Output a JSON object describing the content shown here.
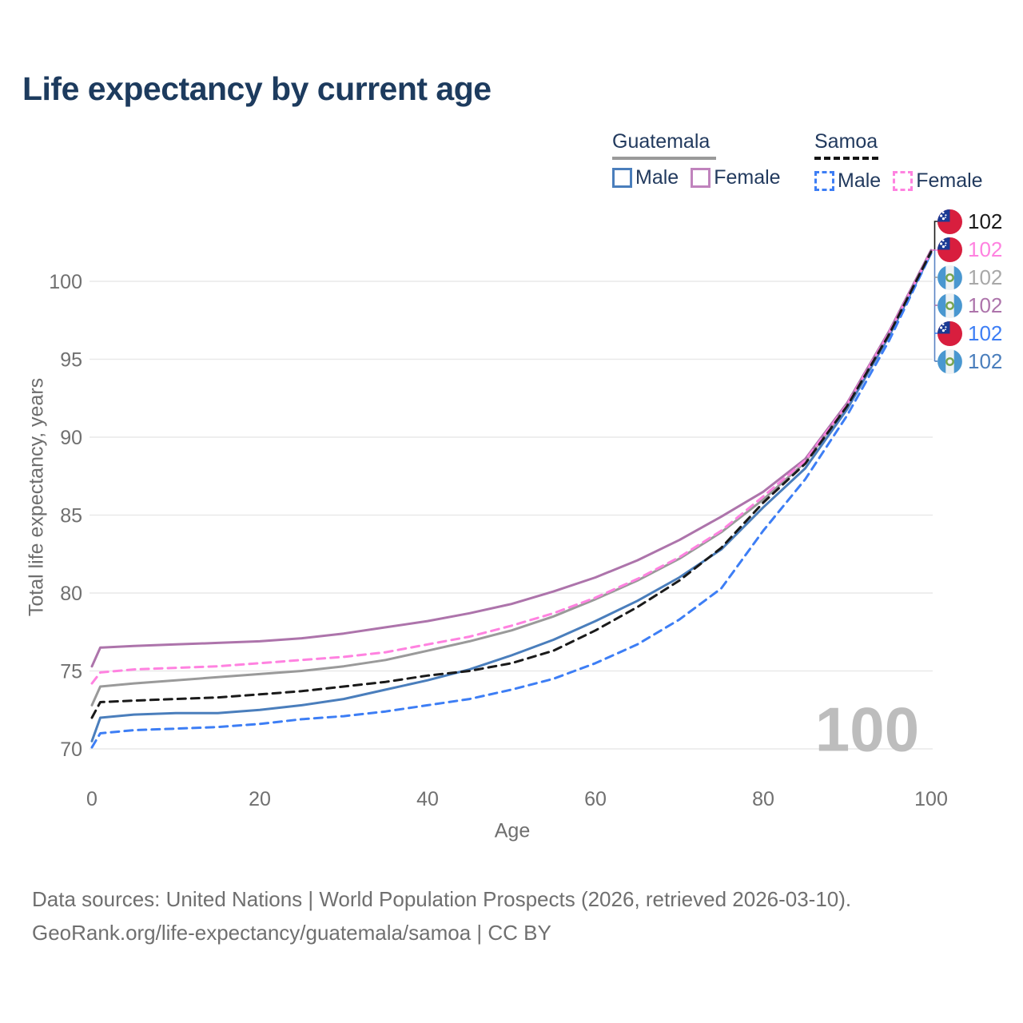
{
  "title": "Life expectancy by current age",
  "watermark": "100",
  "legend": {
    "groups": [
      {
        "title": "Guatemala",
        "style": "solid",
        "items": [
          {
            "label": "Male",
            "color": "#4a7ebc"
          },
          {
            "label": "Female",
            "color": "#c083bd"
          }
        ]
      },
      {
        "title": "Samoa",
        "style": "dashed",
        "items": [
          {
            "label": "Male",
            "color": "#3d7ef5"
          },
          {
            "label": "Female",
            "color": "#ff82e0"
          }
        ]
      }
    ]
  },
  "chart_data": {
    "type": "line",
    "title": "Life expectancy by current age",
    "xlabel": "Age",
    "ylabel": "Total life expectancy, years",
    "xlim": [
      0,
      100
    ],
    "ylim": [
      69,
      103
    ],
    "xticks": [
      0,
      20,
      40,
      60,
      80,
      100
    ],
    "yticks": [
      70,
      75,
      80,
      85,
      90,
      95,
      100
    ],
    "grid": "horizontal",
    "legend_position": "top-right",
    "x": [
      0,
      1,
      5,
      10,
      15,
      20,
      25,
      30,
      35,
      40,
      45,
      50,
      55,
      60,
      65,
      70,
      75,
      80,
      85,
      90,
      95,
      100
    ],
    "series": [
      {
        "id": "guatemala-all",
        "name": "Guatemala",
        "group": "Guatemala",
        "sex": "all",
        "style": "solid",
        "color": "#9a9a9a",
        "end_value": 102,
        "values": [
          72.8,
          74.0,
          74.2,
          74.4,
          74.6,
          74.8,
          75.0,
          75.3,
          75.7,
          76.3,
          76.9,
          77.6,
          78.5,
          79.6,
          80.8,
          82.2,
          83.9,
          86.0,
          88.4,
          92.0,
          96.6,
          101.9
        ]
      },
      {
        "id": "guatemala-female",
        "name": "Guatemala Female",
        "group": "Guatemala",
        "sex": "female",
        "style": "solid",
        "color": "#ad74ab",
        "end_value": 102,
        "values": [
          75.3,
          76.5,
          76.6,
          76.7,
          76.8,
          76.9,
          77.1,
          77.4,
          77.8,
          78.2,
          78.7,
          79.3,
          80.1,
          81.0,
          82.1,
          83.4,
          84.9,
          86.5,
          88.6,
          92.2,
          96.8,
          102.0
        ]
      },
      {
        "id": "guatemala-male",
        "name": "Guatemala Male",
        "group": "Guatemala",
        "sex": "male",
        "style": "solid",
        "color": "#4a7ebc",
        "end_value": 102,
        "values": [
          70.5,
          72.0,
          72.2,
          72.3,
          72.3,
          72.5,
          72.8,
          73.2,
          73.8,
          74.4,
          75.1,
          76.0,
          77.0,
          78.2,
          79.5,
          81.0,
          82.8,
          85.5,
          88.0,
          91.8,
          96.5,
          101.8
        ]
      },
      {
        "id": "samoa-male",
        "name": "Samoa Male",
        "group": "Samoa",
        "sex": "male",
        "style": "dashed",
        "color": "#3d7ef5",
        "end_value": 102,
        "values": [
          70.1,
          71.0,
          71.2,
          71.3,
          71.4,
          71.6,
          71.9,
          72.1,
          72.4,
          72.8,
          73.2,
          73.8,
          74.5,
          75.5,
          76.7,
          78.3,
          80.3,
          84.0,
          87.3,
          91.4,
          96.2,
          101.8
        ]
      },
      {
        "id": "samoa-female",
        "name": "Samoa Female",
        "group": "Samoa",
        "sex": "female",
        "style": "dashed",
        "color": "#ff82e0",
        "end_value": 102,
        "values": [
          74.2,
          74.9,
          75.1,
          75.2,
          75.3,
          75.5,
          75.7,
          75.9,
          76.2,
          76.7,
          77.2,
          77.9,
          78.7,
          79.7,
          80.9,
          82.3,
          84.0,
          86.2,
          88.5,
          92.1,
          96.7,
          101.9
        ]
      },
      {
        "id": "samoa-all",
        "name": "Samoa",
        "group": "Samoa",
        "sex": "all",
        "style": "dashed",
        "color": "#1a1a1a",
        "end_value": 102,
        "values": [
          72.0,
          73.0,
          73.1,
          73.2,
          73.3,
          73.5,
          73.7,
          74.0,
          74.3,
          74.7,
          75.0,
          75.5,
          76.3,
          77.6,
          79.1,
          80.8,
          82.9,
          85.8,
          88.3,
          92.0,
          96.6,
          101.9
        ]
      }
    ]
  },
  "end_labels": [
    {
      "id": "samoa-all",
      "flag": "samoa",
      "value": "102",
      "color": "#1a1a1a"
    },
    {
      "id": "samoa-female",
      "flag": "samoa",
      "value": "102",
      "color": "#ff82e0"
    },
    {
      "id": "guatemala-all",
      "flag": "guatemala",
      "value": "102",
      "color": "#a8a8a8"
    },
    {
      "id": "guatemala-female",
      "flag": "guatemala",
      "value": "102",
      "color": "#ad74ab"
    },
    {
      "id": "samoa-male",
      "flag": "samoa",
      "value": "102",
      "color": "#3d7ef5"
    },
    {
      "id": "guatemala-male",
      "flag": "guatemala",
      "value": "102",
      "color": "#4a7ebc"
    }
  ],
  "footer": {
    "line1": "Data sources: United Nations | World Population Prospects (2026, retrieved 2026-03-10).",
    "line2": "GeoRank.org/life-expectancy/guatemala/samoa | CC BY"
  }
}
